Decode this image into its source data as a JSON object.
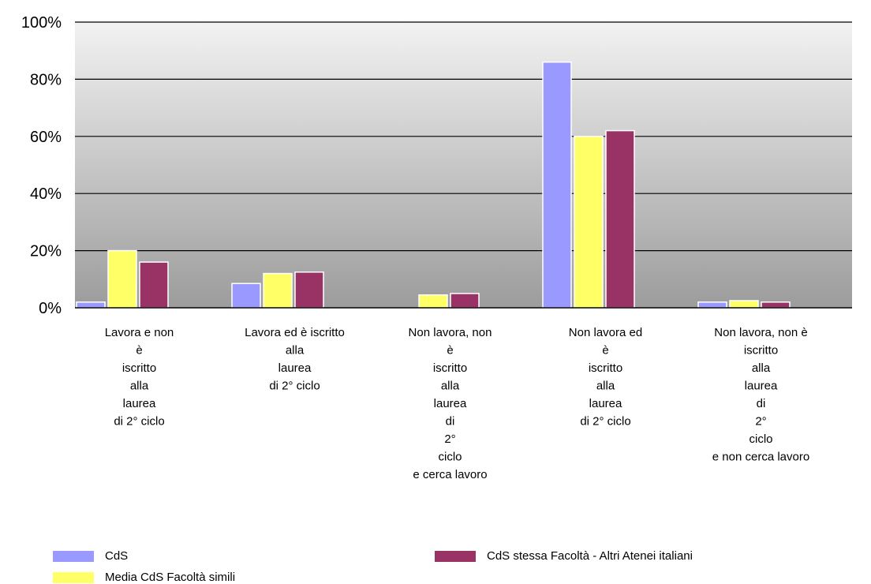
{
  "chart_data": {
    "type": "bar",
    "ylim": [
      0,
      100
    ],
    "yticks": [
      0,
      20,
      40,
      60,
      80,
      100
    ],
    "ytick_labels": [
      "0%",
      "20%",
      "40%",
      "60%",
      "80%",
      "100%"
    ],
    "grid": true,
    "legend_position": "bottom",
    "categories": [
      [
        "Lavora e non",
        "è",
        "iscritto",
        "alla",
        "laurea",
        "di 2° ciclo"
      ],
      [
        "Lavora ed è iscritto",
        "alla",
        "laurea",
        "di 2° ciclo"
      ],
      [
        "Non lavora, non",
        "è",
        "iscritto",
        "alla",
        "laurea",
        "di",
        "2°",
        "ciclo",
        "e cerca lavoro"
      ],
      [
        "Non lavora ed",
        "è",
        "iscritto",
        "alla",
        "laurea",
        "di 2° ciclo"
      ],
      [
        "Non lavora, non è",
        "iscritto",
        "alla",
        "laurea",
        "di",
        "2°",
        "ciclo",
        "e non cerca lavoro"
      ]
    ],
    "series": [
      {
        "name": "CdS",
        "color": "#9999ff",
        "values": [
          2,
          8.5,
          0,
          86,
          2
        ]
      },
      {
        "name": "Media CdS Facoltà simili",
        "color": "#ffff66",
        "values": [
          20,
          12,
          4.5,
          60,
          2.5
        ]
      },
      {
        "name": "CdS stessa Facoltà - Altri Atenei italiani",
        "color": "#993366",
        "values": [
          16,
          12.5,
          5,
          62,
          2
        ]
      }
    ]
  }
}
